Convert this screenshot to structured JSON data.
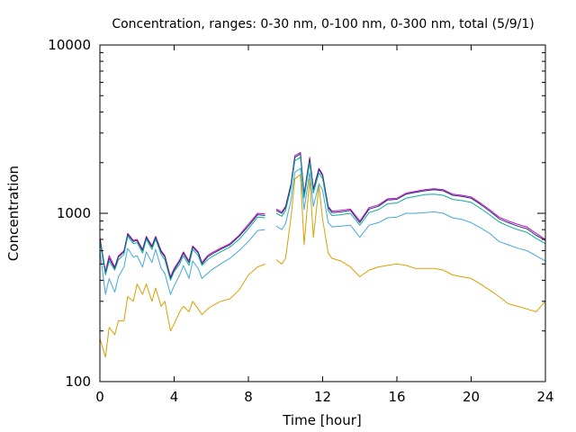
{
  "chart_data": {
    "type": "line",
    "title": "Concentration, ranges: 0-30 nm, 0-100 nm, 0-300 nm, total (5/9/1)",
    "xlabel": "Time [hour]",
    "ylabel": "Concentration",
    "xlim": [
      0,
      24
    ],
    "ylim": [
      100,
      10000
    ],
    "yscale": "log",
    "grid": false,
    "legend": "none",
    "x_ticks": [
      "0",
      "4",
      "8",
      "12",
      "16",
      "20",
      "24"
    ],
    "x_tick_values": [
      0,
      4,
      8,
      12,
      16,
      20,
      24
    ],
    "y_ticks": [
      "100",
      "1000",
      "10000"
    ],
    "y_tick_values": [
      100,
      1000,
      10000
    ],
    "x": [
      0,
      0.3,
      0.5,
      0.8,
      1.0,
      1.3,
      1.5,
      1.8,
      2.0,
      2.3,
      2.5,
      2.8,
      3.0,
      3.3,
      3.5,
      3.8,
      4.0,
      4.3,
      4.5,
      4.8,
      5.0,
      5.3,
      5.5,
      5.8,
      6.0,
      6.5,
      7.0,
      7.5,
      8.0,
      8.5,
      8.9,
      9.0,
      9.5,
      9.8,
      10.0,
      10.3,
      10.5,
      10.8,
      11.0,
      11.3,
      11.5,
      11.8,
      12.0,
      12.3,
      12.5,
      13.0,
      13.5,
      14.0,
      14.5,
      15.0,
      15.5,
      16.0,
      16.5,
      17.0,
      17.5,
      18.0,
      18.5,
      19.0,
      19.5,
      20.0,
      20.5,
      21.0,
      21.5,
      22.0,
      22.5,
      23.0,
      23.5,
      24.0
    ],
    "series": [
      {
        "color": "#cc00cc",
        "values": [
          720,
          450,
          560,
          480,
          560,
          600,
          760,
          690,
          700,
          610,
          730,
          640,
          730,
          600,
          560,
          420,
          470,
          530,
          590,
          520,
          640,
          590,
          510,
          560,
          580,
          620,
          660,
          740,
          860,
          1000,
          990,
          null,
          1060,
          1020,
          1100,
          1500,
          2200,
          2300,
          1300,
          2150,
          1400,
          1850,
          1700,
          1100,
          1030,
          1040,
          1060,
          900,
          1080,
          1120,
          1220,
          1230,
          1320,
          1350,
          1380,
          1400,
          1380,
          1300,
          1280,
          1250,
          1150,
          1050,
          950,
          900,
          860,
          830,
          760,
          700
        ]
      },
      {
        "color": "#1a3a6a",
        "values": [
          700,
          440,
          540,
          470,
          550,
          590,
          750,
          680,
          690,
          600,
          720,
          630,
          720,
          590,
          550,
          410,
          460,
          520,
          580,
          510,
          630,
          580,
          500,
          550,
          570,
          610,
          650,
          730,
          840,
          980,
          970,
          null,
          1040,
          1000,
          1080,
          1480,
          2150,
          2250,
          1280,
          2100,
          1380,
          1820,
          1670,
          1080,
          1010,
          1020,
          1040,
          880,
          1060,
          1100,
          1200,
          1210,
          1300,
          1330,
          1360,
          1380,
          1360,
          1280,
          1260,
          1230,
          1130,
          1030,
          930,
          880,
          840,
          810,
          740,
          690
        ]
      },
      {
        "color": "#13a89e",
        "values": [
          680,
          430,
          520,
          460,
          530,
          570,
          730,
          660,
          670,
          580,
          700,
          610,
          700,
          570,
          530,
          400,
          450,
          500,
          560,
          490,
          610,
          560,
          490,
          530,
          550,
          590,
          630,
          700,
          810,
          950,
          940,
          null,
          1000,
          960,
          1040,
          1420,
          2050,
          2150,
          1230,
          2000,
          1320,
          1740,
          1600,
          1040,
          970,
          980,
          1000,
          850,
          1010,
          1050,
          1140,
          1150,
          1230,
          1260,
          1290,
          1300,
          1280,
          1210,
          1190,
          1160,
          1070,
          980,
          890,
          840,
          800,
          770,
          710,
          660
        ]
      },
      {
        "color": "#44a8d8",
        "values": [
          600,
          330,
          410,
          340,
          420,
          480,
          620,
          550,
          560,
          480,
          590,
          510,
          610,
          470,
          440,
          330,
          370,
          430,
          490,
          410,
          520,
          470,
          410,
          440,
          460,
          500,
          540,
          600,
          680,
          790,
          800,
          null,
          840,
          800,
          870,
          1200,
          1750,
          1850,
          1050,
          1750,
          1100,
          1500,
          1370,
          880,
          830,
          840,
          850,
          720,
          850,
          880,
          940,
          950,
          1000,
          1000,
          1010,
          1020,
          1000,
          940,
          920,
          880,
          820,
          760,
          680,
          650,
          620,
          600,
          560,
          520
        ]
      },
      {
        "color": "#d9a000",
        "values": [
          180,
          140,
          210,
          190,
          230,
          230,
          320,
          300,
          380,
          330,
          380,
          300,
          360,
          280,
          300,
          200,
          220,
          260,
          280,
          260,
          300,
          270,
          250,
          270,
          280,
          300,
          310,
          350,
          430,
          480,
          500,
          null,
          530,
          500,
          540,
          950,
          1600,
          1700,
          650,
          1600,
          720,
          1450,
          920,
          580,
          540,
          520,
          480,
          420,
          460,
          480,
          490,
          500,
          490,
          470,
          470,
          470,
          460,
          430,
          420,
          410,
          380,
          350,
          320,
          290,
          280,
          270,
          260,
          300
        ]
      }
    ]
  }
}
